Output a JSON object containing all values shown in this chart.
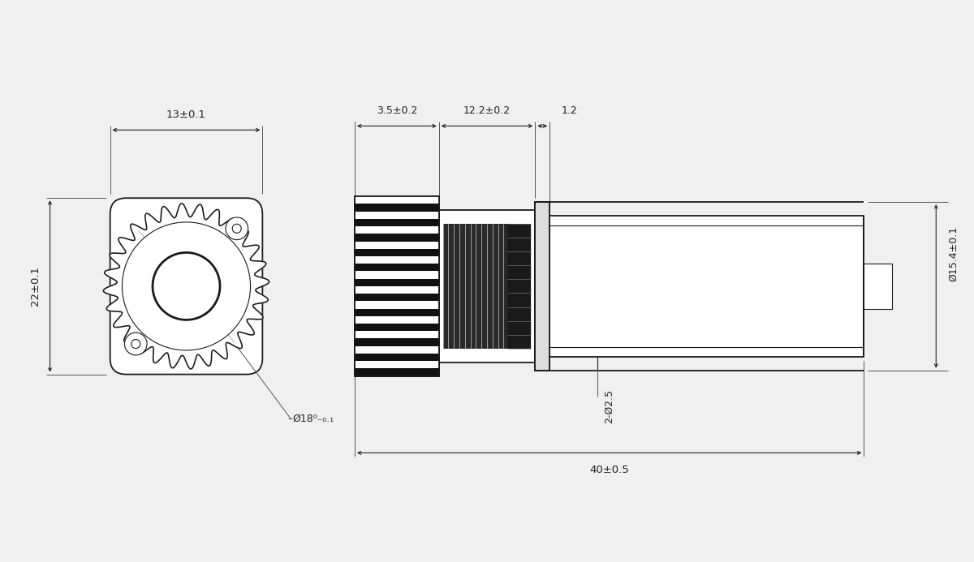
{
  "bg_color": "#f0f0f0",
  "line_color": "#1a1a1a",
  "dim_color": "#222222",
  "font_size_dim": 9.5,
  "dimensions": {
    "width_13": "13±0.1",
    "height_22": "22±0.1",
    "dia_18": "Ø18⁰₋₀.₁",
    "dim_35": "3.5±0.2",
    "dim_122": "12.2±0.2",
    "dim_12": "1.2",
    "dia_154": "Ø15.4±0.1",
    "dim_2phi25": "2-Ø2.5",
    "dim_40": "40±0.5"
  }
}
